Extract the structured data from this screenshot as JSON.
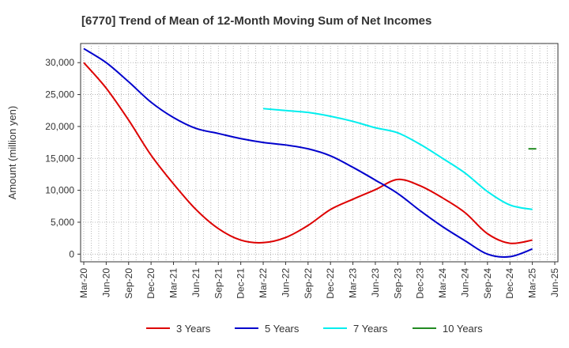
{
  "chart_data": {
    "type": "line",
    "title": "[6770]  Trend of Mean of 12-Month Moving Sum of Net Incomes",
    "xlabel": "",
    "ylabel": "Amount (million yen)",
    "ylim": [
      -1200,
      33000
    ],
    "yticks": [
      0,
      5000,
      10000,
      15000,
      20000,
      25000,
      30000
    ],
    "ytick_labels": [
      "0",
      "5,000",
      "10,000",
      "15,000",
      "20,000",
      "25,000",
      "30,000"
    ],
    "xticks": [
      "Mar-20",
      "Jun-20",
      "Sep-20",
      "Dec-20",
      "Mar-21",
      "Jun-21",
      "Sep-21",
      "Dec-21",
      "Mar-22",
      "Jun-22",
      "Sep-22",
      "Dec-22",
      "Mar-23",
      "Jun-23",
      "Sep-23",
      "Dec-23",
      "Mar-24",
      "Jun-24",
      "Sep-24",
      "Dec-24",
      "Mar-25",
      "Jun-25"
    ],
    "grid": true,
    "legend_position": "bottom",
    "series": [
      {
        "name": "3 Years",
        "color": "#dd0000",
        "x": [
          "Mar-20",
          "Jun-20",
          "Sep-20",
          "Dec-20",
          "Mar-21",
          "Jun-21",
          "Sep-21",
          "Dec-21",
          "Mar-22",
          "Jun-22",
          "Sep-22",
          "Dec-22",
          "Mar-23",
          "Jun-23",
          "Sep-23",
          "Dec-23",
          "Mar-24",
          "Jun-24",
          "Sep-24",
          "Dec-24",
          "Mar-25"
        ],
        "values": [
          30000,
          26000,
          21000,
          15500,
          11000,
          7000,
          4000,
          2200,
          1800,
          2600,
          4500,
          7000,
          8600,
          10100,
          11700,
          10700,
          8800,
          6500,
          3200,
          1700,
          2200
        ]
      },
      {
        "name": "5 Years",
        "color": "#0000cc",
        "x": [
          "Mar-20",
          "Jun-20",
          "Sep-20",
          "Dec-20",
          "Mar-21",
          "Jun-21",
          "Sep-21",
          "Dec-21",
          "Mar-22",
          "Jun-22",
          "Sep-22",
          "Dec-22",
          "Mar-23",
          "Jun-23",
          "Sep-23",
          "Dec-23",
          "Mar-24",
          "Jun-24",
          "Sep-24",
          "Dec-24",
          "Mar-25"
        ],
        "values": [
          32200,
          30000,
          27000,
          23800,
          21400,
          19700,
          18900,
          18100,
          17500,
          17100,
          16500,
          15400,
          13600,
          11600,
          9500,
          6800,
          4300,
          2100,
          0,
          -400,
          800
        ]
      },
      {
        "name": "7 Years",
        "color": "#00eeee",
        "x": [
          "Mar-22",
          "Jun-22",
          "Sep-22",
          "Dec-22",
          "Mar-23",
          "Jun-23",
          "Sep-23",
          "Dec-23",
          "Mar-24",
          "Jun-24",
          "Sep-24",
          "Dec-24",
          "Mar-25"
        ],
        "values": [
          22800,
          22500,
          22200,
          21600,
          20800,
          19800,
          19000,
          17200,
          15000,
          12700,
          9800,
          7700,
          7000
        ]
      },
      {
        "name": "10 Years",
        "color": "#228b22",
        "x": [
          "Mar-25"
        ],
        "values": [
          16500
        ]
      }
    ]
  }
}
